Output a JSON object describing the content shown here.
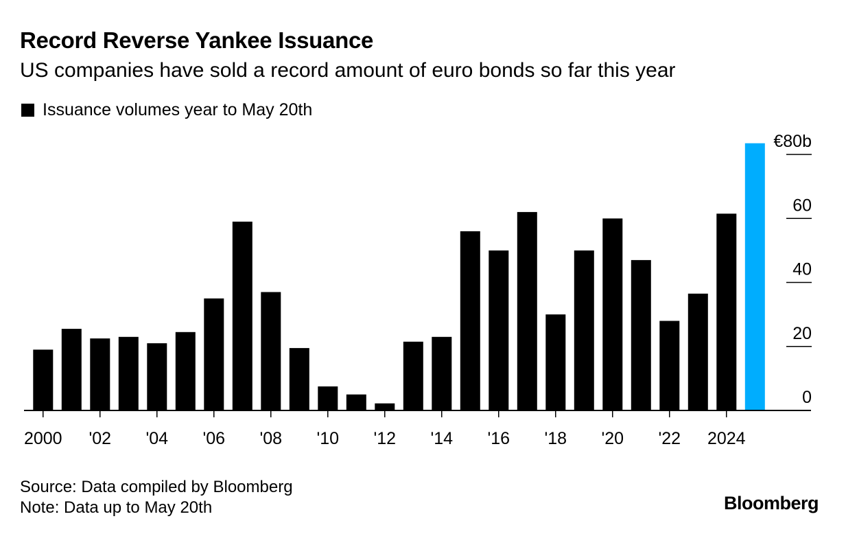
{
  "header": {
    "title": "Record Reverse Yankee Issuance",
    "subtitle": "US companies have sold a record amount of euro bonds so far this year"
  },
  "legend": {
    "label": "Issuance volumes year to May 20th",
    "color": "#000000"
  },
  "chart_data": {
    "type": "bar",
    "title": "Record Reverse Yankee Issuance",
    "subtitle": "US companies have sold a record amount of euro bonds so far this year",
    "xlabel": "",
    "ylabel": "",
    "categories": [
      "2000",
      "2001",
      "2002",
      "2003",
      "2004",
      "2005",
      "2006",
      "2007",
      "2008",
      "2009",
      "2010",
      "2011",
      "2012",
      "2013",
      "2014",
      "2015",
      "2016",
      "2017",
      "2018",
      "2019",
      "2020",
      "2021",
      "2022",
      "2023",
      "2024",
      "2025"
    ],
    "series": [
      {
        "name": "Issuance volumes year to May 20th",
        "values": [
          19,
          25.5,
          22.5,
          23,
          21,
          24.5,
          35,
          59,
          37,
          19.5,
          7.5,
          5,
          2.2,
          21.5,
          23,
          56,
          50,
          62,
          30,
          50,
          60,
          47,
          28,
          36.5,
          61.5,
          83.5
        ],
        "colors": [
          "#000000",
          "#000000",
          "#000000",
          "#000000",
          "#000000",
          "#000000",
          "#000000",
          "#000000",
          "#000000",
          "#000000",
          "#000000",
          "#000000",
          "#000000",
          "#000000",
          "#000000",
          "#000000",
          "#000000",
          "#000000",
          "#000000",
          "#000000",
          "#000000",
          "#000000",
          "#000000",
          "#000000",
          "#000000",
          "#00adfe"
        ]
      }
    ],
    "highlight_color": "#00adfe",
    "ylim": [
      0,
      80
    ],
    "y_ticks": [
      0,
      20,
      40,
      60,
      80
    ],
    "y_tick_labels": [
      "0",
      "20",
      "40",
      "60",
      "€80b"
    ],
    "x_tick_labels": [
      {
        "category": "2000",
        "label": "2000"
      },
      {
        "category": "2002",
        "label": "'02"
      },
      {
        "category": "2004",
        "label": "'04"
      },
      {
        "category": "2006",
        "label": "'06"
      },
      {
        "category": "2008",
        "label": "'08"
      },
      {
        "category": "2010",
        "label": "'10"
      },
      {
        "category": "2012",
        "label": "'12"
      },
      {
        "category": "2014",
        "label": "'14"
      },
      {
        "category": "2016",
        "label": "'16"
      },
      {
        "category": "2018",
        "label": "'18"
      },
      {
        "category": "2020",
        "label": "'20"
      },
      {
        "category": "2022",
        "label": "'22"
      },
      {
        "category": "2024",
        "label": "2024"
      }
    ],
    "y_axis_position": "right",
    "grid": false,
    "legend_position": "top-left"
  },
  "footer": {
    "source": "Source: Data compiled by Bloomberg",
    "note": "Note: Data up to May 20th",
    "brand": "Bloomberg"
  }
}
